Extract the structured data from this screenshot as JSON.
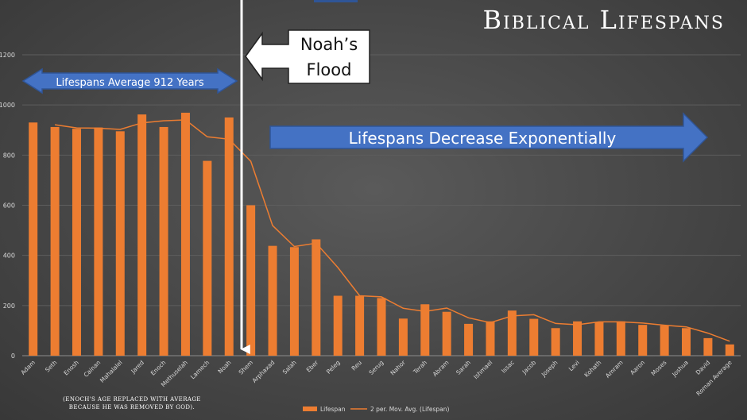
{
  "chart_data": {
    "type": "bar",
    "title": "Biblical Lifespans",
    "categories": [
      "Adam",
      "Seth",
      "Enosh",
      "Cainan",
      "Mahalalel",
      "Jared",
      "Enoch",
      "Methuselah",
      "Lamech",
      "Noah",
      "Shem",
      "Arphaxad",
      "Salah",
      "Eber",
      "Peleg",
      "Reu",
      "Serug",
      "Nahor",
      "Terah",
      "Abram",
      "Sarah",
      "Ishmael",
      "Issac",
      "Jacob",
      "Joseph",
      "Levi",
      "Kohath",
      "Amram",
      "Aaron",
      "Moses",
      "Joshua",
      "David",
      "Roman Average"
    ],
    "series": [
      {
        "name": "Lifespan",
        "values": [
          930,
          912,
          905,
          910,
          895,
          962,
          912,
          969,
          777,
          950,
          600,
          438,
          433,
          464,
          239,
          239,
          230,
          148,
          205,
          175,
          127,
          137,
          180,
          147,
          110,
          137,
          133,
          137,
          123,
          120,
          110,
          70,
          45
        ]
      },
      {
        "name": "2 per. Mov. Avg. (Lifespan)",
        "values": [
          null,
          921,
          908.5,
          907.5,
          902.5,
          928.5,
          937,
          940.5,
          873,
          863.5,
          775,
          519,
          435.5,
          448.5,
          351.5,
          239,
          234.5,
          189,
          176.5,
          190,
          151,
          132,
          158.5,
          163.5,
          128.5,
          123.5,
          135,
          135,
          130,
          121.5,
          115,
          90,
          57.5
        ]
      }
    ],
    "ylim": [
      0,
      1200
    ],
    "yticks": [
      "0",
      "200",
      "400",
      "600",
      "800",
      "1000",
      "1200"
    ],
    "annotations": {
      "flood_label": "Noah’s Flood",
      "early_label": "Lifespans Average 912 Years",
      "decline_label": "Lifespans Decrease Exponentially",
      "footnote_line1": "(Enoch's age replaced with average",
      "footnote_line2": "because he was removed by God)."
    },
    "colors": {
      "bar": "#ed7d31",
      "line": "#ed7d31",
      "arrow_fill": "#4472c4",
      "arrow_stroke": "#2f5597",
      "flood_line": "#ffffff"
    }
  }
}
